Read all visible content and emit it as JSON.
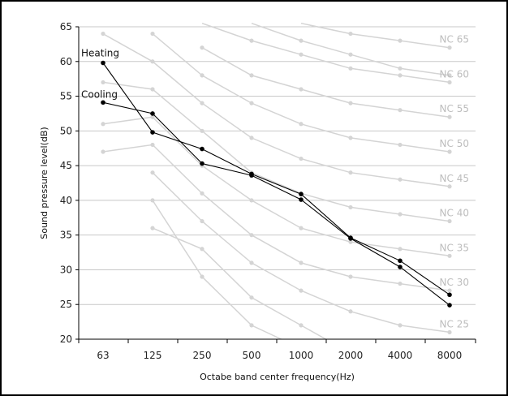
{
  "chart_data": {
    "type": "line",
    "xlabel": "Octabe band center frequency(Hz)",
    "ylabel": "Sound pressure level(dB)",
    "categories": [
      "63",
      "125",
      "250",
      "500",
      "1000",
      "2000",
      "4000",
      "8000"
    ],
    "ylim": [
      20,
      65
    ],
    "yticks": [
      20,
      25,
      30,
      35,
      40,
      45,
      50,
      55,
      60,
      65
    ],
    "grid": true,
    "series": [
      {
        "name": "Heating",
        "values": [
          59.8,
          49.8,
          47.4,
          43.8,
          40.9,
          34.6,
          31.3,
          26.4
        ]
      },
      {
        "name": "Cooling",
        "values": [
          54.1,
          52.5,
          45.3,
          43.6,
          40.1,
          34.5,
          30.4,
          24.9
        ]
      }
    ],
    "reference_curves": [
      {
        "label": "NC 65",
        "values": [
          null,
          null,
          null,
          null,
          null,
          null,
          null,
          62
        ]
      },
      {
        "label": "NC 60",
        "values": [
          null,
          null,
          null,
          null,
          null,
          null,
          null,
          57
        ]
      },
      {
        "label": "NC 55",
        "values": [
          null,
          null,
          null,
          null,
          null,
          null,
          null,
          52
        ]
      },
      {
        "label": "NC 50",
        "values": [
          null,
          null,
          null,
          null,
          null,
          null,
          null,
          47
        ]
      },
      {
        "label": "NC 45",
        "values": [
          null,
          null,
          null,
          null,
          null,
          null,
          null,
          42
        ]
      },
      {
        "label": "NC 40",
        "values": [
          null,
          null,
          null,
          null,
          null,
          null,
          null,
          37
        ]
      },
      {
        "label": "NC 35",
        "values": [
          null,
          null,
          null,
          null,
          null,
          null,
          null,
          32
        ]
      },
      {
        "label": "NC 30",
        "values": [
          null,
          null,
          null,
          null,
          null,
          null,
          null,
          27
        ]
      },
      {
        "label": "NC 25",
        "values": [
          null,
          null,
          null,
          null,
          null,
          null,
          null,
          21
        ]
      }
    ],
    "colors": {
      "series": "#000000",
      "reference": "#d4d4d4",
      "grid": "#c8c8c8"
    }
  }
}
